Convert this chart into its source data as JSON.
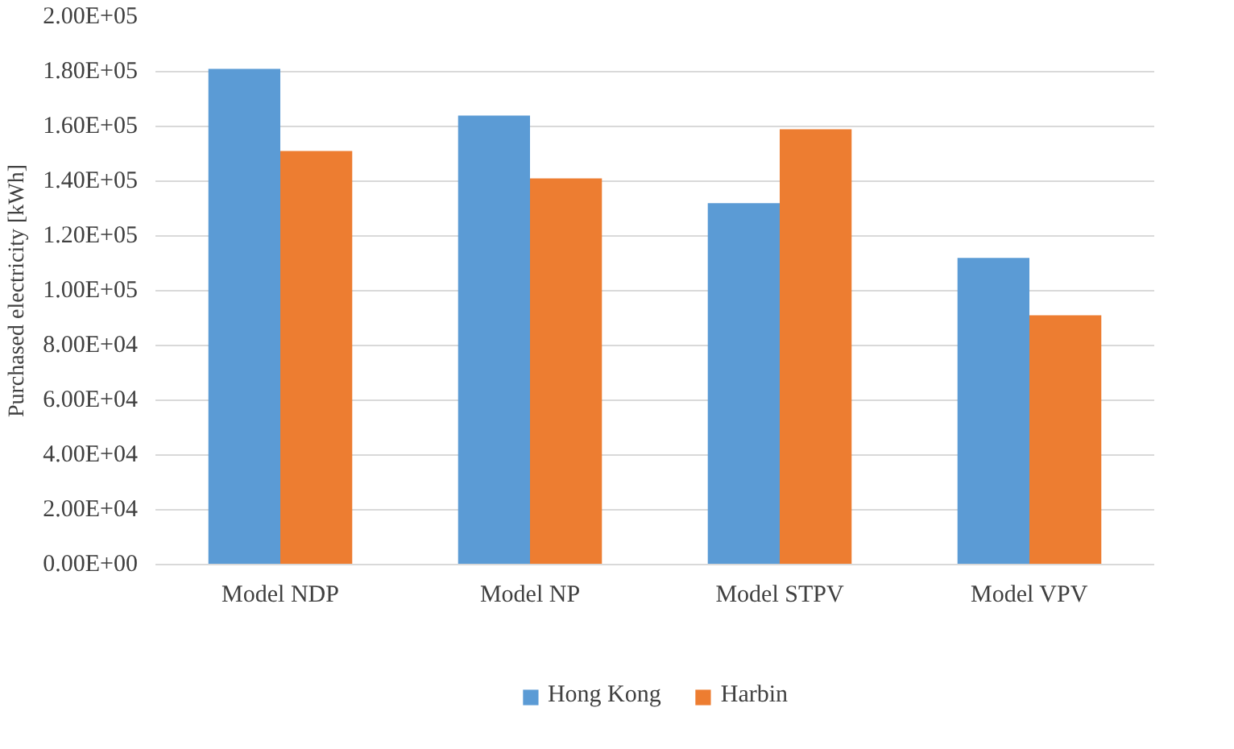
{
  "chart_data": {
    "type": "bar",
    "ylabel": "Purchased electricity [kWh]",
    "categories": [
      "Model NDP",
      "Model NP",
      "Model STPV",
      "Model VPV"
    ],
    "series": [
      {
        "name": "Hong Kong",
        "color": "#5b9bd5",
        "values": [
          181000,
          164000,
          132000,
          112000
        ]
      },
      {
        "name": "Harbin",
        "color": "#ed7d31",
        "values": [
          151000,
          141000,
          159000,
          91000
        ]
      }
    ],
    "ylim": [
      0,
      200000
    ],
    "yticks": [
      {
        "value": 0,
        "label": "0.00E+00"
      },
      {
        "value": 20000,
        "label": "2.00E+04"
      },
      {
        "value": 40000,
        "label": "4.00E+04"
      },
      {
        "value": 60000,
        "label": "6.00E+04"
      },
      {
        "value": 80000,
        "label": "8.00E+04"
      },
      {
        "value": 100000,
        "label": "1.00E+05"
      },
      {
        "value": 120000,
        "label": "1.20E+05"
      },
      {
        "value": 140000,
        "label": "1.40E+05"
      },
      {
        "value": 160000,
        "label": "1.60E+05"
      },
      {
        "value": 180000,
        "label": "1.80E+05"
      },
      {
        "value": 200000,
        "label": "2.00E+05"
      }
    ],
    "grid": "y",
    "legend": "bottom"
  }
}
